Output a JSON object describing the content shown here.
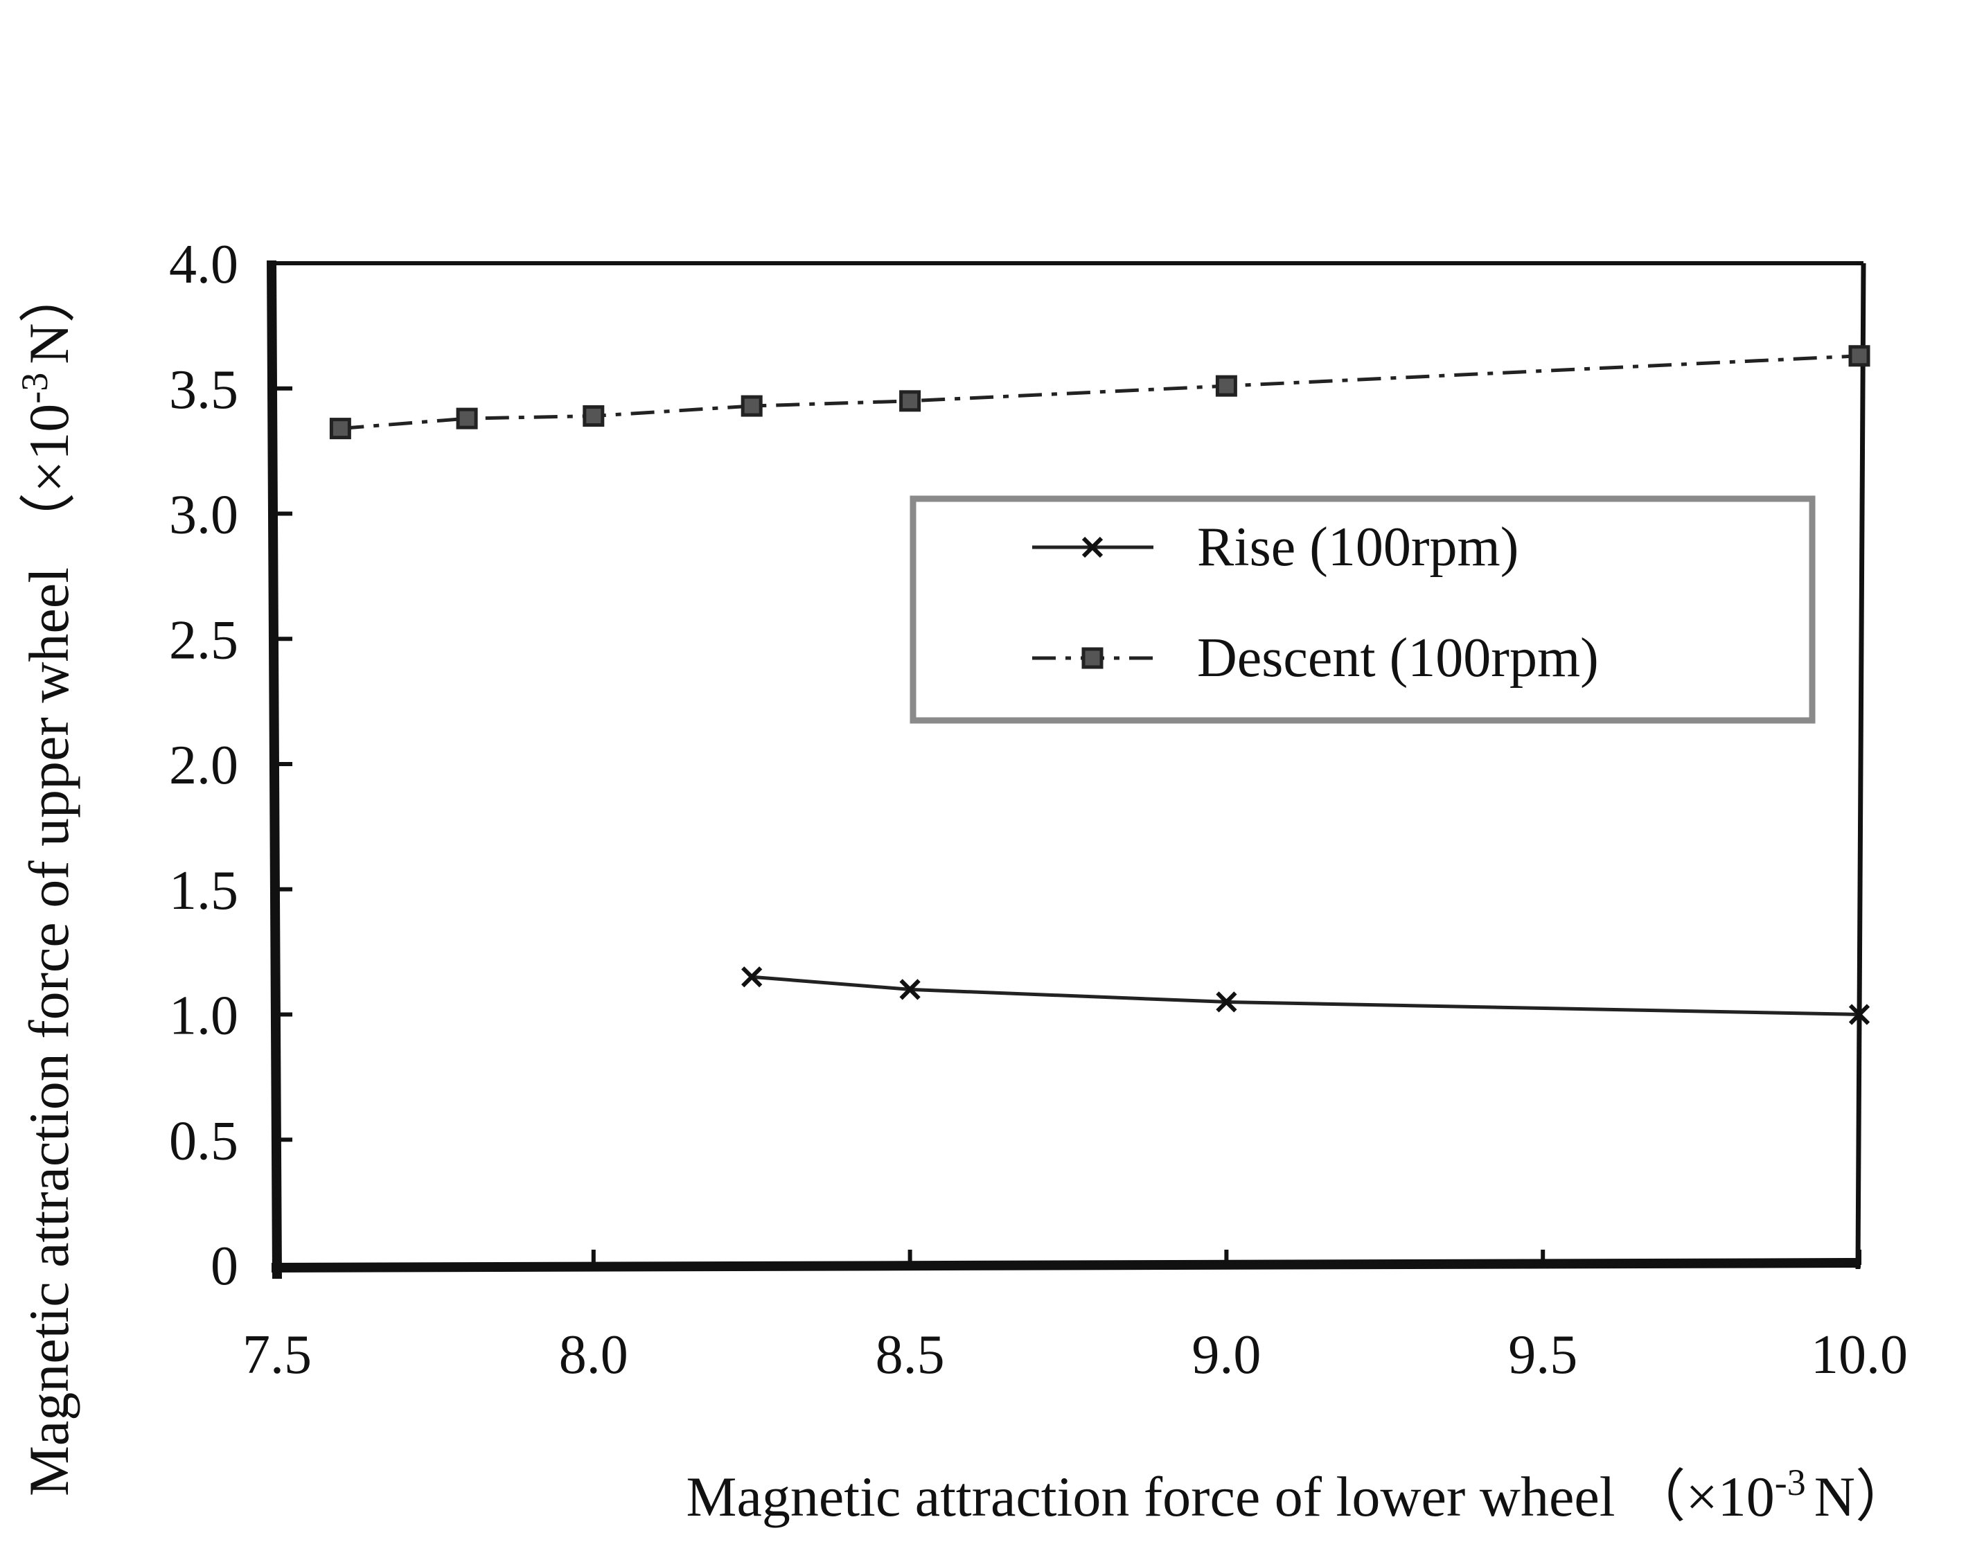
{
  "chart_data": {
    "type": "line",
    "title": "",
    "xlabel": "Magnetic attraction force of lower wheel",
    "xlabel_unit": "（×10",
    "xlabel_unit_exp": "-3",
    "xlabel_unit_tail": "N）",
    "ylabel": "Magnetic attraction force of upper wheel",
    "ylabel_unit": "（×10",
    "ylabel_unit_exp": "-3",
    "ylabel_unit_tail": "N）",
    "xlim": [
      7.5,
      10.0
    ],
    "ylim": [
      0,
      4.0
    ],
    "x_ticks": [
      "7.5",
      "8.0",
      "8.5",
      "9.0",
      "9.5",
      "10.0"
    ],
    "y_ticks": [
      "0",
      "0.5",
      "1.0",
      "1.5",
      "2.0",
      "2.5",
      "3.0",
      "3.5",
      "4.0"
    ],
    "grid": false,
    "legend_position": "center-right",
    "series": [
      {
        "name": "Rise (100rpm)",
        "marker": "x",
        "line_style": "solid",
        "x": [
          8.25,
          8.5,
          9.0,
          10.0
        ],
        "y": [
          1.15,
          1.1,
          1.05,
          1.0
        ]
      },
      {
        "name": "Descent (100rpm)",
        "marker": "square",
        "line_style": "dashdot",
        "x": [
          7.6,
          7.8,
          8.0,
          8.25,
          8.5,
          9.0,
          10.0
        ],
        "y": [
          3.34,
          3.38,
          3.39,
          3.43,
          3.45,
          3.51,
          3.63
        ]
      }
    ],
    "colors": {
      "axis": "#111111",
      "line": "#222222",
      "legend_border": "#8a8a8a"
    }
  }
}
